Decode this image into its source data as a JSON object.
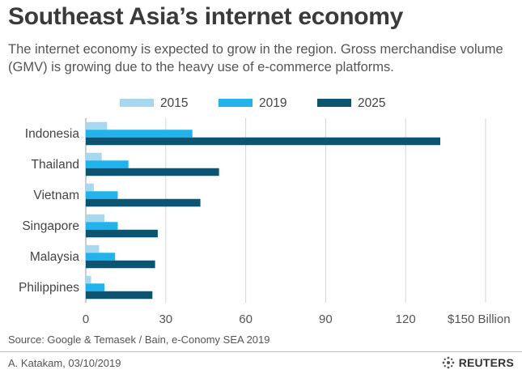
{
  "header": {
    "title": "Southeast Asia’s internet economy",
    "subtitle": "The internet economy is expected to grow in the region. Gross merchandise volume (GMV) is growing due to the heavy use of e-commerce platforms."
  },
  "chart_data": {
    "type": "bar",
    "orientation": "horizontal",
    "categories": [
      "Indonesia",
      "Thailand",
      "Vietnam",
      "Singapore",
      "Malaysia",
      "Philippines"
    ],
    "series": [
      {
        "name": "2015",
        "color": "#a8d8f0",
        "values": [
          8,
          6,
          3,
          7,
          5,
          2
        ]
      },
      {
        "name": "2019",
        "color": "#22b3ec",
        "values": [
          40,
          16,
          12,
          12,
          11,
          7
        ]
      },
      {
        "name": "2025",
        "color": "#0d5470",
        "values": [
          133,
          50,
          43,
          27,
          26,
          25
        ]
      }
    ],
    "x_ticks": [
      "0",
      "30",
      "60",
      "90",
      "120",
      "$150 Billion"
    ],
    "x_tick_values": [
      0,
      30,
      60,
      90,
      120,
      150
    ],
    "xlim": [
      0,
      150
    ],
    "legend_position": "top",
    "grid": "vertical"
  },
  "footer": {
    "source": "Source: Google & Temasek / Bain, e-Conomy SEA 2019",
    "author": "A. Katakam,  03/10/2019",
    "brand": "REUTERS"
  }
}
